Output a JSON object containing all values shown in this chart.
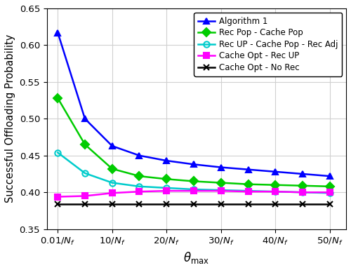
{
  "series": [
    {
      "label": "Algorithm 1",
      "color": "#0000FF",
      "marker": "^",
      "markersize": 6,
      "linewidth": 1.8,
      "x": [
        0.01,
        5,
        10,
        15,
        20,
        25,
        30,
        35,
        40,
        45,
        50
      ],
      "y": [
        0.617,
        0.5,
        0.463,
        0.45,
        0.443,
        0.438,
        0.434,
        0.431,
        0.428,
        0.425,
        0.422
      ]
    },
    {
      "label": "Rec Pop - Cache Pop",
      "color": "#00CC00",
      "marker": "D",
      "markersize": 6,
      "linewidth": 1.8,
      "x": [
        0.01,
        5,
        10,
        15,
        20,
        25,
        30,
        35,
        40,
        45,
        50
      ],
      "y": [
        0.528,
        0.465,
        0.432,
        0.422,
        0.418,
        0.415,
        0.413,
        0.411,
        0.41,
        0.409,
        0.408
      ]
    },
    {
      "label": "Rec UP - Cache Pop - Rec Adj",
      "color": "#00CCCC",
      "marker": "o",
      "markersize": 6,
      "linewidth": 1.8,
      "x": [
        0.01,
        5,
        10,
        15,
        20,
        25,
        30,
        35,
        40,
        45,
        50
      ],
      "y": [
        0.454,
        0.426,
        0.413,
        0.408,
        0.406,
        0.404,
        0.403,
        0.402,
        0.401,
        0.4,
        0.399
      ]
    },
    {
      "label": "Cache Opt - Rec UP",
      "color": "#FF00FF",
      "marker": "s",
      "markersize": 6,
      "linewidth": 1.8,
      "x": [
        0.01,
        5,
        10,
        15,
        20,
        25,
        30,
        35,
        40,
        45,
        50
      ],
      "y": [
        0.394,
        0.395,
        0.399,
        0.401,
        0.402,
        0.402,
        0.402,
        0.401,
        0.401,
        0.4,
        0.4
      ]
    },
    {
      "label": "Cache Opt - No Rec",
      "color": "#000000",
      "marker": "x",
      "markersize": 6,
      "linewidth": 1.8,
      "x": [
        0.01,
        5,
        10,
        15,
        20,
        25,
        30,
        35,
        40,
        45,
        50
      ],
      "y": [
        0.384,
        0.384,
        0.384,
        0.384,
        0.384,
        0.384,
        0.384,
        0.384,
        0.384,
        0.384,
        0.384
      ]
    }
  ],
  "ylabel": "Successful Offloading Probability",
  "xlabel_math": "$\\theta_{\\mathrm{max}}$",
  "ylim": [
    0.35,
    0.65
  ],
  "yticks": [
    0.35,
    0.4,
    0.45,
    0.5,
    0.55,
    0.6,
    0.65
  ],
  "xticks": [
    0.01,
    10,
    20,
    30,
    40,
    50
  ],
  "x_tick_labels": [
    "$0.01/N_f$",
    "$10/N_f$",
    "$20/N_f$",
    "$30/N_f$",
    "$40/N_f$",
    "$50/N_f$"
  ],
  "xlim": [
    -2,
    53
  ],
  "grid_color": "#D0D0D0",
  "background_color": "#FFFFFF",
  "legend_fontsize": 8.5,
  "ylabel_fontsize": 10.5,
  "xlabel_fontsize": 12,
  "tick_fontsize": 9.5
}
